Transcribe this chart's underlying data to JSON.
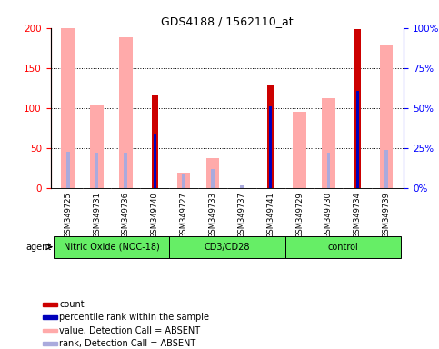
{
  "title": "GDS4188 / 1562110_at",
  "samples": [
    "GSM349725",
    "GSM349731",
    "GSM349736",
    "GSM349740",
    "GSM349727",
    "GSM349733",
    "GSM349737",
    "GSM349741",
    "GSM349729",
    "GSM349730",
    "GSM349734",
    "GSM349739"
  ],
  "groups": [
    {
      "label": "Nitric Oxide (NOC-18)",
      "start": 0,
      "end": 3
    },
    {
      "label": "CD3/CD28",
      "start": 4,
      "end": 7
    },
    {
      "label": "control",
      "start": 8,
      "end": 11
    }
  ],
  "count_values": [
    null,
    null,
    null,
    117,
    null,
    null,
    null,
    130,
    null,
    null,
    198,
    null
  ],
  "rank_values": [
    null,
    null,
    null,
    68,
    null,
    null,
    null,
    102,
    null,
    null,
    122,
    null
  ],
  "absent_value_heights": [
    200,
    104,
    188,
    null,
    20,
    38,
    null,
    null,
    96,
    112,
    null,
    178
  ],
  "absent_rank_heights": [
    46,
    44,
    45,
    null,
    18,
    24,
    4,
    null,
    null,
    45,
    null,
    48
  ],
  "ylim": [
    0,
    200
  ],
  "yticks": [
    0,
    50,
    100,
    150,
    200
  ],
  "y2ticks": [
    0,
    25,
    50,
    75,
    100
  ],
  "ytick_labels": [
    "0",
    "50",
    "100",
    "150",
    "200"
  ],
  "y2tick_labels": [
    "0%",
    "25%",
    "50%",
    "75%",
    "100%"
  ],
  "colors": {
    "count": "#cc0000",
    "rank": "#0000bb",
    "absent_value": "#ffaaaa",
    "absent_rank": "#aaaadd",
    "group_bg": "#66ee66",
    "xtick_bg": "#cccccc",
    "border": "#000000"
  },
  "legend_items": [
    {
      "color": "#cc0000",
      "label": "count"
    },
    {
      "color": "#0000bb",
      "label": "percentile rank within the sample"
    },
    {
      "color": "#ffaaaa",
      "label": "value, Detection Call = ABSENT"
    },
    {
      "color": "#aaaadd",
      "label": "rank, Detection Call = ABSENT"
    }
  ]
}
